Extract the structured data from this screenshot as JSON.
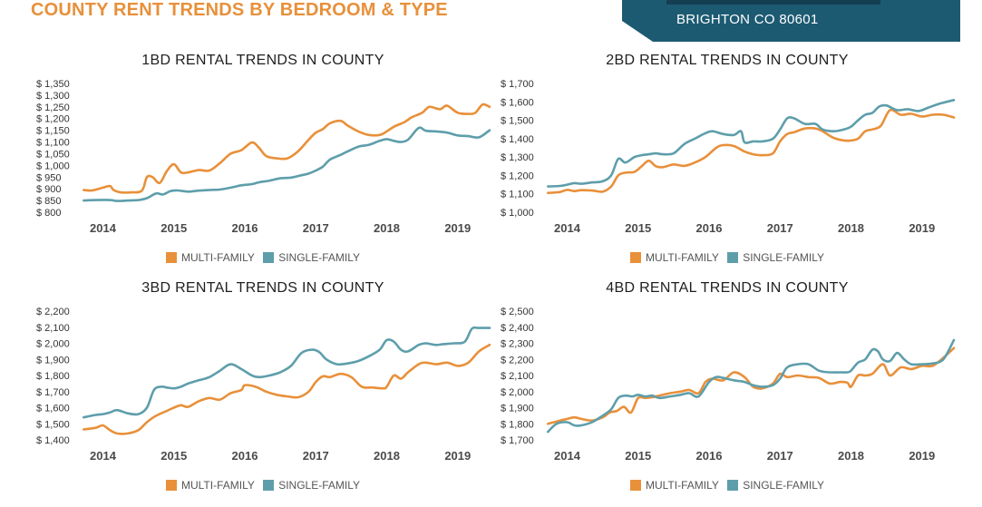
{
  "page": {
    "title": "COUNTY RENT TRENDS BY BEDROOM & TYPE",
    "location": "BRIGHTON CO 80601"
  },
  "colors": {
    "multi_family": "#e8903a",
    "single_family": "#5e9eab",
    "banner": "#1c5a72",
    "title": "#e8903a"
  },
  "chart_data": [
    {
      "type": "line",
      "title": "1BD RENTAL TRENDS IN COUNTY",
      "ylim": [
        800,
        1350
      ],
      "yticks": [
        800,
        850,
        900,
        950,
        1000,
        1050,
        1100,
        1150,
        1200,
        1250,
        1300,
        1350
      ],
      "ytick_labels": [
        "$ 800",
        "$ 850",
        "$ 900",
        "$ 950",
        "$ 1,000",
        "$ 1,050",
        "$ 1,100",
        "$ 1,150",
        "$ 1,200",
        "$ 1,250",
        "$ 1,300",
        "$ 1,350"
      ],
      "xlim": [
        2013.7,
        2019.45
      ],
      "x_ticks": [
        "2014",
        "2015",
        "2016",
        "2017",
        "2018",
        "2019"
      ],
      "grid": false,
      "legend_position": "bottom",
      "series": [
        {
          "name": "MULTI-FAMILY",
          "x": [
            2013.73,
            2013.85,
            2014.0,
            2014.1,
            2014.15,
            2014.25,
            2014.4,
            2014.55,
            2014.62,
            2014.7,
            2014.8,
            2014.9,
            2015.0,
            2015.1,
            2015.2,
            2015.35,
            2015.5,
            2015.65,
            2015.8,
            2015.95,
            2016.1,
            2016.2,
            2016.3,
            2016.45,
            2016.6,
            2016.75,
            2016.9,
            2017.0,
            2017.1,
            2017.2,
            2017.35,
            2017.45,
            2017.6,
            2017.75,
            2017.9,
            2018.0,
            2018.1,
            2018.25,
            2018.35,
            2018.5,
            2018.6,
            2018.75,
            2018.85,
            2019.0,
            2019.15,
            2019.25,
            2019.35,
            2019.45
          ],
          "values": [
            895,
            893,
            905,
            912,
            895,
            885,
            885,
            892,
            950,
            950,
            925,
            975,
            1005,
            970,
            970,
            980,
            978,
            1010,
            1050,
            1065,
            1098,
            1075,
            1040,
            1030,
            1030,
            1060,
            1110,
            1140,
            1155,
            1180,
            1190,
            1170,
            1145,
            1130,
            1130,
            1145,
            1165,
            1185,
            1205,
            1225,
            1250,
            1240,
            1255,
            1225,
            1220,
            1225,
            1260,
            1250
          ]
        },
        {
          "name": "SINGLE-FAMILY",
          "x": [
            2013.73,
            2013.9,
            2014.1,
            2014.2,
            2014.35,
            2014.5,
            2014.62,
            2014.75,
            2014.85,
            2014.95,
            2015.05,
            2015.2,
            2015.35,
            2015.5,
            2015.65,
            2015.8,
            2015.95,
            2016.1,
            2016.2,
            2016.35,
            2016.5,
            2016.65,
            2016.8,
            2016.9,
            2017.0,
            2017.1,
            2017.2,
            2017.35,
            2017.45,
            2017.6,
            2017.75,
            2017.9,
            2018.0,
            2018.1,
            2018.2,
            2018.3,
            2018.45,
            2018.55,
            2018.7,
            2018.85,
            2019.0,
            2019.15,
            2019.3,
            2019.45
          ],
          "values": [
            850,
            852,
            852,
            848,
            850,
            852,
            860,
            880,
            876,
            890,
            893,
            888,
            892,
            895,
            897,
            905,
            915,
            920,
            928,
            935,
            945,
            948,
            958,
            965,
            978,
            995,
            1025,
            1045,
            1060,
            1080,
            1088,
            1105,
            1112,
            1105,
            1100,
            1110,
            1160,
            1148,
            1145,
            1140,
            1128,
            1125,
            1120,
            1150
          ]
        }
      ]
    },
    {
      "type": "line",
      "title": "2BD RENTAL TRENDS IN COUNTY",
      "ylim": [
        1000,
        1700
      ],
      "yticks": [
        1000,
        1100,
        1200,
        1300,
        1400,
        1500,
        1600,
        1700
      ],
      "ytick_labels": [
        "$ 1,000",
        "$ 1,100",
        "$ 1,200",
        "$ 1,300",
        "$ 1,400",
        "$ 1,500",
        "$ 1,600",
        "$ 1,700"
      ],
      "xlim": [
        2013.7,
        2019.45
      ],
      "x_ticks": [
        "2014",
        "2015",
        "2016",
        "2017",
        "2018",
        "2019"
      ],
      "grid": false,
      "legend_position": "bottom",
      "series": [
        {
          "name": "MULTI-FAMILY",
          "x": [
            2013.73,
            2013.9,
            2014.0,
            2014.1,
            2014.2,
            2014.35,
            2014.5,
            2014.62,
            2014.72,
            2014.82,
            2014.95,
            2015.05,
            2015.15,
            2015.25,
            2015.35,
            2015.5,
            2015.65,
            2015.8,
            2015.95,
            2016.1,
            2016.2,
            2016.35,
            2016.5,
            2016.62,
            2016.75,
            2016.9,
            2017.0,
            2017.1,
            2017.2,
            2017.35,
            2017.5,
            2017.6,
            2017.75,
            2017.9,
            2018.0,
            2018.1,
            2018.2,
            2018.3,
            2018.42,
            2018.55,
            2018.7,
            2018.85,
            2019.0,
            2019.15,
            2019.3,
            2019.45
          ],
          "values": [
            1105,
            1110,
            1122,
            1115,
            1120,
            1118,
            1112,
            1140,
            1200,
            1215,
            1220,
            1250,
            1280,
            1250,
            1245,
            1260,
            1252,
            1270,
            1300,
            1350,
            1365,
            1360,
            1330,
            1315,
            1310,
            1320,
            1385,
            1425,
            1435,
            1455,
            1455,
            1440,
            1405,
            1390,
            1390,
            1400,
            1440,
            1450,
            1470,
            1555,
            1530,
            1535,
            1520,
            1530,
            1530,
            1515
          ]
        },
        {
          "name": "SINGLE-FAMILY",
          "x": [
            2013.73,
            2013.9,
            2014.0,
            2014.1,
            2014.2,
            2014.35,
            2014.5,
            2014.62,
            2014.72,
            2014.82,
            2014.95,
            2015.05,
            2015.15,
            2015.25,
            2015.35,
            2015.5,
            2015.65,
            2015.8,
            2015.95,
            2016.05,
            2016.2,
            2016.35,
            2016.45,
            2016.5,
            2016.62,
            2016.75,
            2016.9,
            2017.0,
            2017.1,
            2017.2,
            2017.35,
            2017.5,
            2017.6,
            2017.75,
            2017.9,
            2018.0,
            2018.1,
            2018.2,
            2018.3,
            2018.4,
            2018.5,
            2018.65,
            2018.8,
            2018.95,
            2019.1,
            2019.25,
            2019.45
          ],
          "values": [
            1140,
            1143,
            1150,
            1158,
            1155,
            1162,
            1168,
            1200,
            1290,
            1270,
            1300,
            1310,
            1315,
            1320,
            1315,
            1320,
            1370,
            1400,
            1430,
            1440,
            1425,
            1420,
            1440,
            1380,
            1385,
            1385,
            1400,
            1450,
            1510,
            1510,
            1480,
            1480,
            1450,
            1440,
            1450,
            1465,
            1500,
            1530,
            1540,
            1575,
            1580,
            1555,
            1560,
            1550,
            1570,
            1590,
            1610
          ]
        }
      ]
    },
    {
      "type": "line",
      "title": "3BD RENTAL TRENDS IN COUNTY",
      "ylim": [
        1400,
        2200
      ],
      "yticks": [
        1400,
        1500,
        1600,
        1700,
        1800,
        1900,
        2000,
        2100,
        2200
      ],
      "ytick_labels": [
        "$ 1,400",
        "$ 1,500",
        "$ 1,600",
        "$ 1,700",
        "$ 1,800",
        "$ 1,900",
        "$ 2,000",
        "$ 2,100",
        "$ 2,200"
      ],
      "xlim": [
        2013.7,
        2019.45
      ],
      "x_ticks": [
        "2014",
        "2015",
        "2016",
        "2017",
        "2018",
        "2019"
      ],
      "grid": false,
      "legend_position": "bottom",
      "series": [
        {
          "name": "MULTI-FAMILY",
          "x": [
            2013.73,
            2013.9,
            2014.0,
            2014.1,
            2014.2,
            2014.35,
            2014.5,
            2014.62,
            2014.75,
            2014.9,
            2015.0,
            2015.1,
            2015.2,
            2015.35,
            2015.5,
            2015.65,
            2015.8,
            2015.95,
            2016.0,
            2016.15,
            2016.3,
            2016.45,
            2016.6,
            2016.75,
            2016.9,
            2017.0,
            2017.1,
            2017.2,
            2017.35,
            2017.5,
            2017.65,
            2017.8,
            2017.95,
            2018.0,
            2018.1,
            2018.2,
            2018.3,
            2018.45,
            2018.55,
            2018.7,
            2018.85,
            2019.0,
            2019.15,
            2019.3,
            2019.45
          ],
          "values": [
            1465,
            1475,
            1490,
            1460,
            1440,
            1440,
            1460,
            1510,
            1550,
            1580,
            1600,
            1615,
            1605,
            1640,
            1660,
            1650,
            1690,
            1710,
            1740,
            1730,
            1700,
            1680,
            1670,
            1665,
            1700,
            1760,
            1795,
            1790,
            1810,
            1790,
            1730,
            1725,
            1720,
            1730,
            1800,
            1780,
            1820,
            1870,
            1880,
            1870,
            1880,
            1860,
            1880,
            1950,
            1990
          ]
        },
        {
          "name": "SINGLE-FAMILY",
          "x": [
            2013.73,
            2013.9,
            2014.0,
            2014.1,
            2014.2,
            2014.35,
            2014.5,
            2014.62,
            2014.72,
            2014.82,
            2014.9,
            2015.0,
            2015.1,
            2015.2,
            2015.35,
            2015.5,
            2015.65,
            2015.8,
            2015.95,
            2016.1,
            2016.2,
            2016.35,
            2016.5,
            2016.65,
            2016.8,
            2016.95,
            2017.05,
            2017.15,
            2017.3,
            2017.45,
            2017.6,
            2017.75,
            2017.9,
            2018.0,
            2018.1,
            2018.2,
            2018.3,
            2018.45,
            2018.55,
            2018.62,
            2018.7,
            2018.8,
            2018.95,
            2019.1,
            2019.2,
            2019.3,
            2019.45
          ],
          "values": [
            1540,
            1555,
            1560,
            1570,
            1585,
            1565,
            1560,
            1600,
            1710,
            1730,
            1725,
            1720,
            1730,
            1750,
            1770,
            1790,
            1830,
            1870,
            1840,
            1800,
            1790,
            1800,
            1820,
            1860,
            1940,
            1960,
            1945,
            1900,
            1870,
            1875,
            1890,
            1920,
            1960,
            2020,
            2010,
            1960,
            1950,
            1990,
            2000,
            1995,
            1990,
            1995,
            2000,
            2010,
            2090,
            2095,
            2095
          ]
        }
      ]
    },
    {
      "type": "line",
      "title": "4BD RENTAL TRENDS IN COUNTY",
      "ylim": [
        1700,
        2500
      ],
      "yticks": [
        1700,
        1800,
        1900,
        2000,
        2100,
        2200,
        2300,
        2400,
        2500
      ],
      "ytick_labels": [
        "$ 1,700",
        "$ 1,800",
        "$ 1,900",
        "$ 2,000",
        "$ 2,100",
        "$ 2,200",
        "$ 2,300",
        "$ 2,400",
        "$ 2,500"
      ],
      "xlim": [
        2013.7,
        2019.45
      ],
      "x_ticks": [
        "2014",
        "2015",
        "2016",
        "2017",
        "2018",
        "2019"
      ],
      "grid": false,
      "legend_position": "bottom",
      "series": [
        {
          "name": "MULTI-FAMILY",
          "x": [
            2013.73,
            2013.9,
            2014.0,
            2014.1,
            2014.2,
            2014.35,
            2014.5,
            2014.6,
            2014.7,
            2014.8,
            2014.9,
            2015.0,
            2015.1,
            2015.2,
            2015.3,
            2015.45,
            2015.6,
            2015.72,
            2015.85,
            2015.95,
            2016.05,
            2016.2,
            2016.35,
            2016.5,
            2016.62,
            2016.75,
            2016.9,
            2017.0,
            2017.1,
            2017.25,
            2017.4,
            2017.55,
            2017.7,
            2017.85,
            2017.95,
            2018.0,
            2018.1,
            2018.2,
            2018.3,
            2018.45,
            2018.55,
            2018.7,
            2018.85,
            2019.0,
            2019.15,
            2019.3,
            2019.45
          ],
          "values": [
            1800,
            1820,
            1830,
            1840,
            1830,
            1820,
            1840,
            1870,
            1880,
            1905,
            1870,
            1960,
            1960,
            1965,
            1975,
            1990,
            2000,
            2010,
            1990,
            2060,
            2080,
            2070,
            2120,
            2090,
            2030,
            2020,
            2050,
            2110,
            2090,
            2100,
            2090,
            2085,
            2050,
            2060,
            2055,
            2030,
            2100,
            2100,
            2110,
            2170,
            2100,
            2150,
            2140,
            2160,
            2160,
            2210,
            2270
          ]
        },
        {
          "name": "SINGLE-FAMILY",
          "x": [
            2013.73,
            2013.85,
            2014.0,
            2014.1,
            2014.2,
            2014.35,
            2014.5,
            2014.62,
            2014.72,
            2014.82,
            2014.92,
            2015.0,
            2015.1,
            2015.2,
            2015.3,
            2015.45,
            2015.6,
            2015.72,
            2015.85,
            2016.0,
            2016.1,
            2016.2,
            2016.35,
            2016.5,
            2016.62,
            2016.75,
            2016.9,
            2017.0,
            2017.1,
            2017.25,
            2017.4,
            2017.55,
            2017.7,
            2017.85,
            2017.95,
            2018.0,
            2018.1,
            2018.2,
            2018.3,
            2018.38,
            2018.45,
            2018.55,
            2018.65,
            2018.75,
            2018.85,
            2019.0,
            2019.15,
            2019.3,
            2019.45
          ],
          "values": [
            1750,
            1800,
            1810,
            1790,
            1790,
            1810,
            1850,
            1890,
            1960,
            1975,
            1970,
            1980,
            1970,
            1975,
            1960,
            1970,
            1980,
            1990,
            1970,
            2060,
            2090,
            2085,
            2070,
            2060,
            2040,
            2030,
            2040,
            2080,
            2150,
            2170,
            2170,
            2130,
            2120,
            2120,
            2120,
            2130,
            2180,
            2200,
            2260,
            2250,
            2200,
            2190,
            2240,
            2200,
            2170,
            2170,
            2175,
            2200,
            2320
          ]
        }
      ]
    }
  ]
}
